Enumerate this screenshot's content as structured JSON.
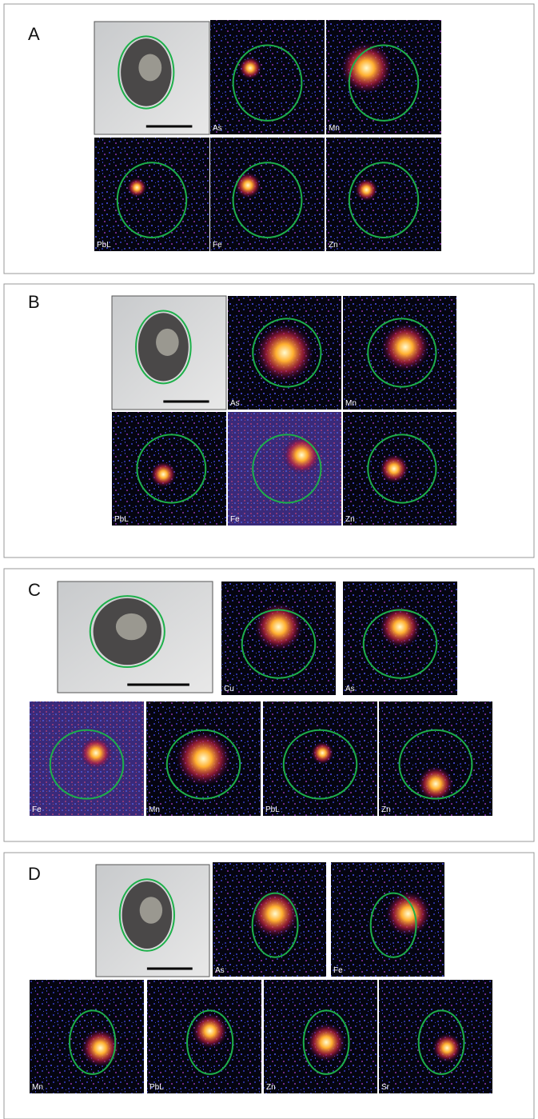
{
  "panels": [
    {
      "label": "A",
      "maps": [
        "As",
        "Mn",
        "PbL",
        "Fe",
        "Zn"
      ]
    },
    {
      "label": "B",
      "maps": [
        "As",
        "Mn",
        "PbL",
        "Fe",
        "Zn"
      ]
    },
    {
      "label": "C",
      "maps": [
        "Cu",
        "As",
        "Fe",
        "Mn",
        "PbL",
        "Zn"
      ]
    },
    {
      "label": "D",
      "maps": [
        "As",
        "Fe",
        "Mn",
        "PbL",
        "Zn",
        "Sr"
      ]
    }
  ]
}
